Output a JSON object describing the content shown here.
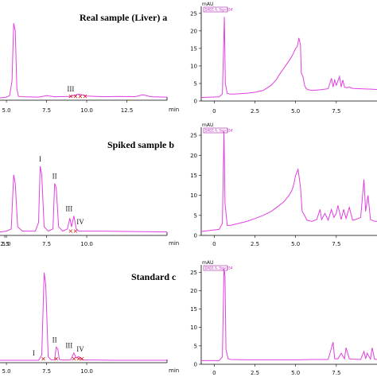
{
  "colors": {
    "trace": "#e040e0",
    "axis": "#000000",
    "marker": "#d00000",
    "signal_box": "#a020a0"
  },
  "chart_data": [
    {
      "type": "line",
      "panel_label": "Real sample (Liver) a",
      "xlabel": "min",
      "x_ticks": [
        "5.0",
        "7.5",
        "10.0",
        "12.5"
      ],
      "y_ticks": [],
      "xlim": [
        4.6,
        15.0
      ],
      "ylim": [
        0,
        25
      ],
      "series": [
        {
          "x": [
            4.6,
            5.0,
            5.2,
            5.35,
            5.45,
            5.55,
            5.65,
            5.75,
            6.0,
            7.0,
            7.5,
            8.0,
            9.0,
            9.5,
            10.0,
            11.0,
            12.0,
            13.0,
            13.5,
            14.0,
            15.0
          ],
          "y": [
            0.6,
            0.8,
            1.2,
            5,
            20,
            18,
            3,
            1.0,
            0.9,
            0.8,
            1.2,
            0.9,
            1.0,
            1.6,
            1.1,
            0.9,
            1.0,
            0.9,
            1.4,
            0.9,
            0.8
          ]
        }
      ],
      "peak_labels": [
        {
          "text": "III",
          "x": 9.0
        }
      ],
      "markers_x": [
        9.0,
        9.3,
        9.6,
        9.9
      ]
    },
    {
      "type": "line",
      "panel_label": "Spiked sample b",
      "xlabel": "min",
      "x_ticks": [
        "2.5",
        "5.0",
        "7.5",
        "10.0"
      ],
      "y_ticks": [],
      "xlim": [
        4.6,
        15.0
      ],
      "ylim": [
        0,
        25
      ],
      "series": [
        {
          "x": [
            4.6,
            5.0,
            5.3,
            5.45,
            5.55,
            5.7,
            6.0,
            6.8,
            7.0,
            7.1,
            7.2,
            7.35,
            7.6,
            7.9,
            8.0,
            8.1,
            8.25,
            8.5,
            8.8,
            8.95,
            9.05,
            9.2,
            9.35,
            9.5,
            10.0,
            11.0,
            13.0,
            15.0
          ],
          "y": [
            0.8,
            1.0,
            1.5,
            14,
            12,
            2,
            1.0,
            1.0,
            3,
            16,
            14,
            2,
            1.0,
            1.5,
            12,
            11,
            2,
            1.0,
            1.5,
            4,
            2,
            4.5,
            1.5,
            1.0,
            1.0,
            1.0,
            0.9,
            0.8
          ]
        }
      ],
      "peak_labels": [
        {
          "text": "I",
          "x": 7.1
        },
        {
          "text": "II",
          "x": 8.0
        },
        {
          "text": "III",
          "x": 8.9
        },
        {
          "text": "IV",
          "x": 9.6
        }
      ],
      "markers_x": [
        9.0,
        9.3
      ]
    },
    {
      "type": "line",
      "panel_label": "Standard c",
      "xlabel": "min",
      "x_ticks": [
        "5.0",
        "7.5",
        "10.0"
      ],
      "y_ticks": [],
      "xlim": [
        4.6,
        15.0
      ],
      "ylim": [
        0,
        25
      ],
      "series": [
        {
          "x": [
            4.6,
            5.0,
            6.0,
            7.0,
            7.2,
            7.35,
            7.45,
            7.6,
            7.8,
            8.0,
            8.1,
            8.2,
            8.3,
            8.5,
            9.0,
            9.2,
            9.35,
            9.5,
            9.7,
            9.9,
            10.5,
            12.0,
            15.0
          ],
          "y": [
            0.6,
            0.6,
            0.6,
            0.6,
            2,
            23,
            20,
            1.5,
            0.7,
            0.8,
            4,
            3.5,
            0.8,
            0.7,
            0.7,
            2.5,
            1.2,
            1.6,
            0.8,
            0.7,
            0.7,
            0.6,
            0.6
          ]
        }
      ],
      "peak_labels": [
        {
          "text": "I",
          "x": 6.7
        },
        {
          "text": "II",
          "x": 8.0
        },
        {
          "text": "III",
          "x": 8.9
        },
        {
          "text": "IV",
          "x": 9.6
        }
      ],
      "markers_x": [
        7.3,
        8.1,
        9.2,
        9.5,
        9.7
      ]
    },
    {
      "type": "line",
      "ylabel": "mAU",
      "signal_box": "DAD1 A, Sig=254",
      "x_ticks": [
        "0",
        "2.5",
        "5.0",
        "7.5"
      ],
      "y_ticks": [
        "0",
        "5",
        "10",
        "15",
        "20",
        "25"
      ],
      "xlim": [
        -0.8,
        10.0
      ],
      "ylim": [
        0,
        27
      ],
      "series": [
        {
          "x": [
            -0.8,
            0.3,
            0.5,
            0.62,
            0.68,
            0.8,
            0.95,
            1.2,
            1.6,
            2.0,
            2.5,
            3.0,
            3.5,
            3.8,
            4.0,
            4.3,
            4.6,
            4.8,
            4.9,
            5.0,
            5.1,
            5.2,
            5.3,
            5.35,
            5.45,
            5.55,
            5.65,
            5.8,
            6.0,
            6.5,
            7.0,
            7.2,
            7.3,
            7.4,
            7.5,
            7.7,
            7.8,
            7.9,
            8.0,
            8.15,
            8.3,
            8.5,
            9.0,
            9.5,
            10.0
          ],
          "y": [
            1.0,
            1.2,
            2.0,
            24,
            5,
            2.2,
            2.0,
            2.0,
            2.1,
            2.2,
            2.5,
            3.0,
            4.5,
            6.0,
            7.5,
            9.5,
            11.5,
            13,
            14,
            15,
            15.5,
            18,
            16,
            8,
            7,
            4.5,
            3.5,
            3.2,
            3.0,
            3.2,
            3.5,
            6.5,
            4,
            6,
            4.5,
            7,
            4,
            6,
            4.0,
            3.8,
            4.0,
            3.6,
            3.5,
            3.4,
            3.3
          ]
        }
      ]
    },
    {
      "type": "line",
      "ylabel": "mAU",
      "signal_box": "DAD1 A, Sig=254",
      "x_ticks": [
        "0",
        "2.5",
        "5.0",
        "7.5"
      ],
      "y_ticks": [
        "0",
        "5",
        "10",
        "15",
        "20",
        "25"
      ],
      "xlim": [
        -0.8,
        10.0
      ],
      "ylim": [
        0,
        27
      ],
      "series": [
        {
          "x": [
            -0.8,
            0.3,
            0.5,
            0.6,
            0.66,
            0.8,
            1.0,
            1.5,
            2.0,
            2.5,
            3.0,
            3.5,
            4.0,
            4.3,
            4.6,
            4.8,
            4.9,
            5.0,
            5.15,
            5.3,
            5.4,
            5.55,
            5.7,
            6.0,
            6.3,
            6.5,
            6.6,
            6.8,
            7.0,
            7.2,
            7.35,
            7.5,
            7.6,
            7.8,
            7.95,
            8.1,
            8.3,
            8.5,
            8.7,
            9.0,
            9.2,
            9.3,
            9.45,
            9.6,
            9.8,
            10.0
          ],
          "y": [
            1.0,
            1.5,
            3.0,
            26,
            8,
            2.5,
            2.5,
            3.0,
            3.5,
            4.2,
            5.0,
            6.0,
            7.5,
            8.5,
            10.0,
            11.5,
            13,
            15,
            16.5,
            12,
            6,
            5,
            3.8,
            3.5,
            4.0,
            6.5,
            4,
            5.5,
            3.8,
            6.5,
            4.5,
            5.5,
            7.5,
            4,
            6.5,
            4.2,
            7,
            3.8,
            4.0,
            4.5,
            14,
            6,
            10,
            4.0,
            3.6,
            3.5
          ]
        }
      ]
    },
    {
      "type": "line",
      "ylabel": "mAU",
      "signal_box": "DAD1 A, Sig=254",
      "x_ticks": [
        "0",
        "2.5",
        "5.0",
        "7.5"
      ],
      "y_ticks": [
        "0",
        "5",
        "10",
        "15",
        "20",
        "25"
      ],
      "xlim": [
        -0.8,
        10.0
      ],
      "ylim": [
        0,
        27
      ],
      "series": [
        {
          "x": [
            -0.8,
            0.3,
            0.5,
            0.6,
            0.66,
            0.72,
            0.85,
            1.0,
            2.0,
            3.0,
            4.0,
            5.0,
            6.0,
            7.0,
            7.3,
            7.4,
            7.6,
            7.8,
            8.0,
            8.1,
            8.3,
            8.5,
            9.0,
            9.2,
            9.3,
            9.4,
            9.6,
            9.7,
            9.85,
            10.0
          ],
          "y": [
            1.0,
            1.0,
            2.0,
            26,
            24,
            4,
            1.5,
            1.3,
            1.2,
            1.2,
            1.2,
            1.2,
            1.3,
            1.3,
            6,
            1.5,
            1.5,
            3,
            1.5,
            4.5,
            1.5,
            1.4,
            1.3,
            3.5,
            1.5,
            3.0,
            1.4,
            4.5,
            1.4,
            1.3
          ]
        }
      ]
    }
  ]
}
